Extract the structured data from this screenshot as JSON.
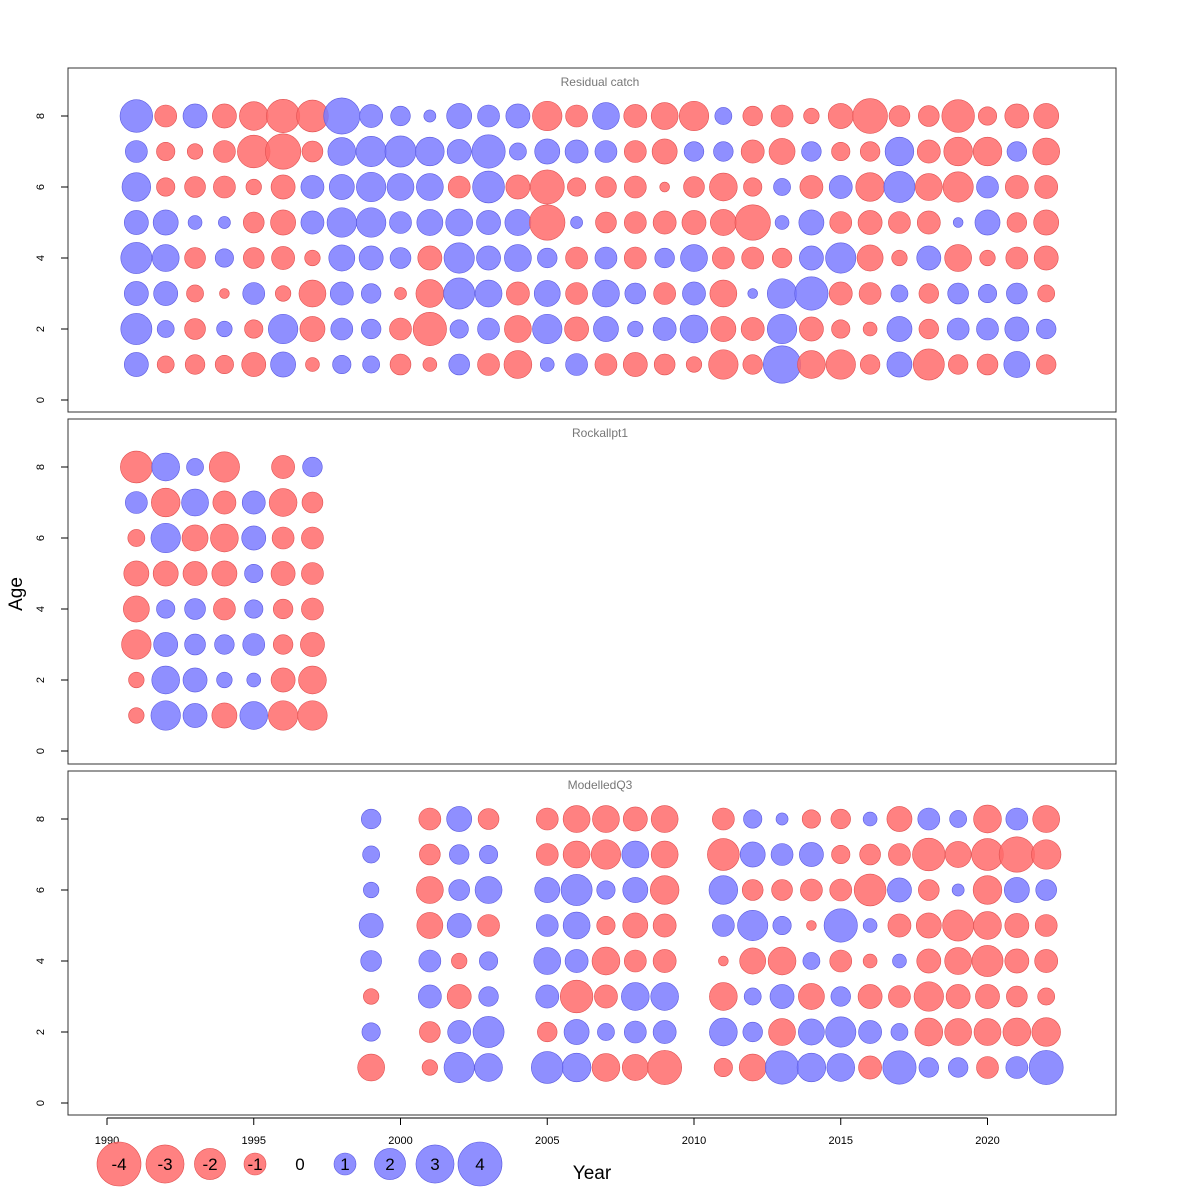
{
  "chart_data": {
    "type": "bubble",
    "xlabel": "Year",
    "ylabel": "Age",
    "x_ticks": [
      1990,
      1995,
      2000,
      2005,
      2010,
      2015,
      2020
    ],
    "y_ticks": [
      0,
      2,
      4,
      6,
      8
    ],
    "xlim": [
      1990,
      2023
    ],
    "ylim": [
      0,
      9
    ],
    "ages": [
      1,
      2,
      3,
      4,
      5,
      6,
      7,
      8
    ],
    "colors": {
      "negative": "#FF6B6B",
      "positive": "#7B7BFF"
    },
    "panels": [
      {
        "title": "Residual catch",
        "years": [
          1991,
          1992,
          1993,
          1994,
          1995,
          1996,
          1997,
          1998,
          1999,
          2000,
          2001,
          2002,
          2003,
          2004,
          2005,
          2006,
          2007,
          2008,
          2009,
          2010,
          2011,
          2012,
          2013,
          2014,
          2015,
          2016,
          2017,
          2018,
          2019,
          2020,
          2021,
          2022
        ],
        "residuals_by_age": {
          "8": [
            2.2,
            -1.0,
            1.2,
            -1.2,
            -1.7,
            -2.3,
            -2.1,
            2.7,
            1.1,
            0.8,
            0.3,
            1.3,
            1.0,
            1.2,
            -1.8,
            -1.0,
            1.5,
            -1.1,
            -1.5,
            -1.8,
            0.6,
            -0.8,
            -1.0,
            -0.5,
            -1.3,
            -2.5,
            -0.9,
            -0.9,
            -2.2,
            -0.7,
            -1.2,
            -1.3
          ],
          "7": [
            1.0,
            -0.7,
            -0.5,
            -1.0,
            -2.2,
            -2.6,
            -0.9,
            1.6,
            1.9,
            2.0,
            1.7,
            1.2,
            2.3,
            0.6,
            1.3,
            1.1,
            1.0,
            -1.0,
            -1.3,
            0.8,
            0.8,
            -1.1,
            -1.4,
            0.8,
            -0.7,
            -0.8,
            1.7,
            -1.1,
            -1.7,
            -1.7,
            0.8,
            -1.5
          ],
          "6": [
            1.7,
            -0.7,
            -0.9,
            -1.0,
            -0.5,
            -1.2,
            1.1,
            1.3,
            1.8,
            1.5,
            1.5,
            -1.0,
            2.1,
            -1.2,
            -2.4,
            -0.7,
            -0.9,
            -1.0,
            -0.2,
            -0.9,
            -1.6,
            -0.7,
            0.6,
            -1.1,
            1.1,
            -1.7,
            2.0,
            -1.5,
            -1.9,
            1.0,
            -1.1,
            -1.1
          ],
          "5": [
            1.2,
            1.3,
            0.4,
            0.3,
            -0.9,
            -1.3,
            1.1,
            1.8,
            1.8,
            1.0,
            1.4,
            1.5,
            1.2,
            1.4,
            -2.6,
            0.3,
            -0.9,
            -1.0,
            -1.1,
            -1.2,
            -1.4,
            -2.6,
            0.4,
            1.3,
            -1.0,
            -1.2,
            -1.0,
            -1.1,
            0.2,
            1.3,
            -0.8,
            -1.3
          ],
          "4": [
            2.0,
            1.5,
            -0.9,
            0.7,
            -0.9,
            -1.1,
            -0.5,
            1.4,
            1.2,
            0.9,
            -1.2,
            1.9,
            1.2,
            1.5,
            0.8,
            -1.0,
            1.0,
            -1.0,
            0.8,
            1.5,
            -1.0,
            -1.0,
            -0.8,
            1.2,
            1.9,
            -1.4,
            -0.5,
            1.2,
            -1.5,
            -0.5,
            -1.0,
            -1.2
          ],
          "3": [
            1.2,
            1.2,
            -0.6,
            -0.2,
            1.0,
            -0.5,
            -1.5,
            1.1,
            0.8,
            -0.3,
            -1.6,
            2.0,
            1.5,
            -1.1,
            1.4,
            -1.0,
            1.5,
            0.9,
            -1.0,
            1.1,
            -1.5,
            0.2,
            1.8,
            2.3,
            -1.1,
            -1.0,
            0.6,
            -0.8,
            0.9,
            0.7,
            0.9,
            -0.6
          ],
          "2": [
            2.0,
            0.6,
            -0.9,
            0.5,
            -0.7,
            1.8,
            -1.3,
            1.0,
            0.8,
            -1.0,
            -2.3,
            0.7,
            1.0,
            -1.5,
            1.8,
            -1.2,
            1.3,
            0.5,
            1.1,
            1.6,
            -1.3,
            -1.1,
            1.8,
            -1.2,
            -0.7,
            -0.4,
            1.3,
            -0.8,
            1.0,
            1.0,
            1.2,
            0.8
          ],
          "1": [
            1.2,
            -0.6,
            -0.8,
            -0.7,
            -1.2,
            1.3,
            -0.4,
            0.7,
            0.6,
            -0.9,
            -0.4,
            0.9,
            -1.0,
            -1.6,
            0.4,
            1.0,
            -1.0,
            -1.2,
            -0.9,
            -0.5,
            -1.8,
            -0.8,
            2.9,
            -1.6,
            -1.8,
            -0.8,
            1.3,
            -2.0,
            -0.8,
            -0.9,
            1.4,
            -0.8
          ]
        }
      },
      {
        "title": "Rockallpt1",
        "years": [
          1991,
          1992,
          1993,
          1994,
          1995,
          1996,
          1997
        ],
        "residuals_by_age": {
          "8": [
            -2.1,
            1.6,
            0.6,
            -1.9,
            0.0,
            -1.1,
            0.8
          ],
          "7": [
            1.0,
            -1.7,
            1.5,
            -1.1,
            1.1,
            -1.6,
            -0.9
          ],
          "6": [
            -0.6,
            1.8,
            -1.4,
            -1.6,
            1.2,
            -1.0,
            -1.0
          ],
          "5": [
            -1.3,
            -1.3,
            -1.2,
            -1.3,
            0.7,
            -1.2,
            -1.0
          ],
          "4": [
            -1.4,
            0.7,
            0.9,
            -1.0,
            0.7,
            -0.8,
            -1.0
          ],
          "3": [
            -1.8,
            1.2,
            0.9,
            0.8,
            1.0,
            -0.8,
            -1.2
          ],
          "2": [
            -0.5,
            1.6,
            1.2,
            0.5,
            0.4,
            -1.2,
            -1.6
          ],
          "1": [
            -0.5,
            1.8,
            1.2,
            -1.3,
            1.6,
            -1.8,
            -1.8
          ]
        }
      },
      {
        "title": "ModelledQ3",
        "years": [
          1999,
          2001,
          2002,
          2003,
          2005,
          2006,
          2007,
          2008,
          2009,
          2011,
          2012,
          2013,
          2014,
          2015,
          2016,
          2017,
          2018,
          2019,
          2020,
          2021,
          2022
        ],
        "residuals_by_age": {
          "8": [
            0.8,
            -1.0,
            1.3,
            -0.9,
            -1.0,
            -1.5,
            -1.5,
            -1.2,
            -1.5,
            -1.0,
            0.7,
            0.3,
            -0.7,
            -0.8,
            0.4,
            -1.3,
            1.0,
            0.6,
            -1.6,
            1.0,
            -1.5
          ],
          "7": [
            0.6,
            -0.9,
            0.8,
            0.7,
            -1.0,
            -1.5,
            -1.8,
            1.5,
            -1.5,
            -2.1,
            1.3,
            1.0,
            1.2,
            -0.7,
            -0.9,
            -1.0,
            -2.2,
            -1.4,
            -2.1,
            -2.6,
            -1.8
          ],
          "6": [
            0.5,
            -1.5,
            0.9,
            1.5,
            1.3,
            2.0,
            0.7,
            1.3,
            -1.7,
            1.7,
            -0.9,
            -0.9,
            -1.0,
            -1.0,
            -2.1,
            1.2,
            -0.9,
            0.3,
            -1.7,
            1.3,
            0.9
          ],
          "5": [
            1.2,
            -1.4,
            1.2,
            -1.0,
            1.0,
            1.5,
            -0.7,
            -1.3,
            -1.1,
            1.0,
            1.9,
            0.7,
            -0.2,
            2.3,
            0.4,
            -1.1,
            -1.3,
            -2.0,
            -1.6,
            -1.2,
            -1.0
          ],
          "4": [
            0.9,
            1.0,
            -0.5,
            0.7,
            1.5,
            1.1,
            -1.6,
            -1.0,
            -1.1,
            -0.2,
            -1.4,
            -1.6,
            0.6,
            -1.0,
            -0.4,
            0.4,
            -1.2,
            -1.5,
            -2.0,
            -1.2,
            -1.1
          ],
          "3": [
            -0.5,
            1.1,
            -1.2,
            0.8,
            1.1,
            -2.2,
            -1.1,
            1.6,
            1.6,
            -1.6,
            0.6,
            1.2,
            -1.4,
            0.8,
            -1.2,
            -1.0,
            -1.8,
            -1.2,
            -1.2,
            -0.9,
            -0.6
          ],
          "2": [
            0.7,
            -0.9,
            1.1,
            2.0,
            -0.8,
            1.3,
            0.6,
            1.0,
            1.1,
            1.6,
            0.8,
            -1.5,
            1.4,
            1.9,
            1.1,
            0.6,
            -1.6,
            -1.5,
            -1.5,
            -1.6,
            -1.7
          ],
          "1": [
            -1.5,
            -0.5,
            1.9,
            1.6,
            2.1,
            1.7,
            -1.6,
            -1.4,
            -2.4,
            -0.7,
            -1.5,
            2.3,
            1.7,
            1.6,
            -1.1,
            2.3,
            0.8,
            0.8,
            -1.0,
            1.0,
            2.4
          ]
        }
      }
    ],
    "legend": {
      "values": [
        -4,
        -3,
        -2,
        -1,
        0,
        1,
        2,
        3,
        4
      ],
      "labels": [
        "-4",
        "-3",
        "-2",
        "-1",
        "0",
        "1",
        "2",
        "3",
        "4"
      ]
    }
  }
}
